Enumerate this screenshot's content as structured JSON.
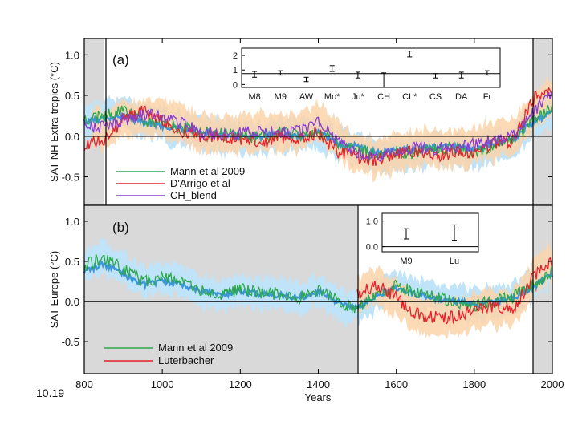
{
  "figure_number": "10.19",
  "x_axis": {
    "label": "Years",
    "ticks": [
      "800",
      "1000",
      "1200",
      "1400",
      "1600",
      "1800",
      "2000"
    ],
    "range": [
      800,
      2000
    ]
  },
  "colors": {
    "uncertainty_blue": "#bfe3f8",
    "uncertainty_orange": "#fcd3a9",
    "mann": "#2aa84a",
    "darrigo": "#e8212a",
    "chblend": "#8a3ccf",
    "blue_mean": "#3c96dc",
    "orange_mean": "#f39a4a",
    "grey_shade": "#d9d9d9"
  },
  "chart_data": [
    {
      "type": "line",
      "panel": "(a)",
      "ylabel": "SAT NH Extra-tropics (°C)",
      "ylim": [
        -0.85,
        1.2
      ],
      "yticks": [
        "1.0",
        "0.5",
        "0.0",
        "-0.5"
      ],
      "shaded_years": [
        [
          800,
          850
        ],
        [
          1950,
          2000
        ]
      ],
      "zero_line": 0,
      "legend": [
        "Mann et al 2009",
        "D'Arrigo et al",
        "CH_blend"
      ],
      "series": [
        {
          "name": "Mann et al 2009",
          "x": [
            800,
            850,
            900,
            950,
            1000,
            1050,
            1100,
            1150,
            1200,
            1250,
            1300,
            1350,
            1400,
            1450,
            1500,
            1550,
            1600,
            1650,
            1700,
            1750,
            1800,
            1850,
            1900,
            1950,
            2000
          ],
          "values": [
            0.2,
            0.25,
            0.3,
            0.2,
            0.15,
            0.1,
            0.05,
            0.02,
            0.0,
            -0.02,
            0.05,
            0.0,
            0.05,
            -0.1,
            -0.15,
            -0.25,
            -0.2,
            -0.2,
            -0.15,
            -0.15,
            -0.2,
            -0.1,
            -0.05,
            0.2,
            0.35
          ]
        },
        {
          "name": "D'Arrigo et al",
          "x": [
            800,
            850,
            900,
            950,
            1000,
            1050,
            1100,
            1150,
            1200,
            1250,
            1300,
            1350,
            1400,
            1450,
            1500,
            1550,
            1600,
            1650,
            1700,
            1750,
            1800,
            1850,
            1900,
            1950,
            2000
          ],
          "values": [
            -0.1,
            -0.05,
            0.2,
            0.3,
            0.2,
            0.05,
            0.0,
            0.0,
            -0.05,
            -0.1,
            0.0,
            -0.05,
            0.05,
            -0.2,
            -0.25,
            -0.3,
            -0.2,
            -0.2,
            -0.25,
            -0.2,
            -0.2,
            -0.1,
            -0.05,
            0.45,
            0.6
          ]
        },
        {
          "name": "CH_blend",
          "x": [
            800,
            850,
            900,
            950,
            1000,
            1050,
            1100,
            1150,
            1200,
            1250,
            1300,
            1350,
            1400,
            1450,
            1500,
            1550,
            1600,
            1650,
            1700,
            1750,
            1800,
            1850,
            1900,
            1950,
            2000
          ],
          "values": [
            0.15,
            0.1,
            0.2,
            0.25,
            0.25,
            0.15,
            0.05,
            0.0,
            0.05,
            0.05,
            0.05,
            0.05,
            0.2,
            -0.05,
            -0.2,
            -0.25,
            -0.2,
            -0.15,
            -0.15,
            -0.15,
            -0.1,
            -0.05,
            0.0,
            0.3,
            0.5
          ]
        }
      ],
      "inset": {
        "yticks": [
          "2",
          "1",
          "0"
        ],
        "ylim": [
          -0.2,
          2.5
        ],
        "ref_line": 0.75,
        "categories": [
          "M8",
          "M9",
          "AW",
          "Mo*",
          "Ju*",
          "CH",
          "CL*",
          "CS",
          "DA",
          "Fr"
        ],
        "values": [
          0.7,
          0.8,
          0.35,
          1.1,
          0.65,
          0.3,
          2.1,
          0.6,
          0.65,
          0.8
        ],
        "err": [
          0.2,
          0.15,
          0.15,
          0.2,
          0.2,
          0.5,
          0.2,
          0.15,
          0.2,
          0.15
        ]
      }
    },
    {
      "type": "line",
      "panel": "(b)",
      "ylabel": "SAT Europe (°C)",
      "ylim": [
        -0.9,
        1.2
      ],
      "yticks": [
        "1.0",
        "0.5",
        "0.0",
        "-0.5"
      ],
      "shaded_years": [
        [
          800,
          1500
        ],
        [
          1950,
          2000
        ]
      ],
      "zero_line": 0,
      "legend": [
        "Mann et al 2009",
        "Luterbacher"
      ],
      "series": [
        {
          "name": "Mann et al 2009",
          "x": [
            800,
            850,
            900,
            950,
            1000,
            1050,
            1100,
            1150,
            1200,
            1250,
            1300,
            1350,
            1400,
            1450,
            1500,
            1550,
            1600,
            1650,
            1700,
            1750,
            1800,
            1850,
            1900,
            1950,
            2000
          ],
          "values": [
            0.45,
            0.55,
            0.4,
            0.25,
            0.3,
            0.25,
            0.15,
            0.1,
            0.15,
            0.1,
            0.1,
            0.05,
            0.15,
            0.0,
            -0.1,
            0.1,
            0.2,
            0.1,
            0.05,
            0.0,
            -0.05,
            0.0,
            0.05,
            0.2,
            0.4
          ]
        },
        {
          "name": "Luterbacher",
          "x": [
            1500,
            1550,
            1600,
            1650,
            1700,
            1750,
            1800,
            1850,
            1900,
            1950,
            2000
          ],
          "values": [
            0.1,
            0.2,
            0.05,
            -0.15,
            -0.2,
            -0.2,
            -0.1,
            -0.05,
            -0.1,
            0.3,
            0.5
          ]
        }
      ],
      "inset": {
        "yticks": [
          "1.0",
          "0.0"
        ],
        "ylim": [
          -0.2,
          1.3
        ],
        "categories": [
          "M9",
          "Lu"
        ],
        "values": [
          0.5,
          0.55
        ],
        "err": [
          0.2,
          0.3
        ]
      }
    }
  ]
}
